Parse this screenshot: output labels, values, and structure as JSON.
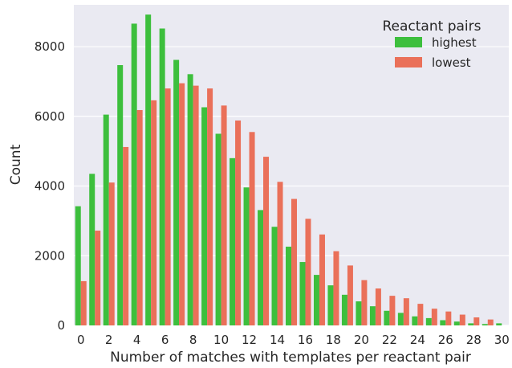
{
  "chart_data": {
    "type": "bar",
    "title": "",
    "xlabel": "Number of matches with templates per reactant pair",
    "ylabel": "Count",
    "ylim": [
      0,
      9200
    ],
    "yticks": [
      0,
      2000,
      4000,
      6000,
      8000
    ],
    "x": [
      0,
      1,
      2,
      3,
      4,
      5,
      6,
      7,
      8,
      9,
      10,
      11,
      12,
      13,
      14,
      15,
      16,
      17,
      18,
      19,
      20,
      21,
      22,
      23,
      24,
      25,
      26,
      27,
      28,
      29,
      30
    ],
    "xtick_labels": [
      "0",
      "2",
      "4",
      "6",
      "8",
      "10",
      "12",
      "14",
      "16",
      "18",
      "20",
      "22",
      "24",
      "26",
      "28",
      "30"
    ],
    "xtick_values": [
      0,
      2,
      4,
      6,
      8,
      10,
      12,
      14,
      16,
      18,
      20,
      22,
      24,
      26,
      28,
      30
    ],
    "grid": true,
    "background": "#eaeaf2",
    "legend": {
      "title": "Reactant pairs",
      "placement": "top-right"
    },
    "series": [
      {
        "name": "highest",
        "color": "#3dbf3d",
        "values": [
          3420,
          4350,
          6050,
          7470,
          8660,
          8920,
          8520,
          7620,
          7210,
          6260,
          5500,
          4800,
          3960,
          3310,
          2830,
          2260,
          1820,
          1450,
          1150,
          880,
          690,
          550,
          420,
          360,
          260,
          210,
          150,
          110,
          60,
          40,
          60
        ]
      },
      {
        "name": "lowest",
        "color": "#ea7059",
        "values": [
          1270,
          2720,
          4100,
          5120,
          6180,
          6460,
          6800,
          6950,
          6880,
          6800,
          6310,
          5880,
          5550,
          4840,
          4120,
          3630,
          3060,
          2610,
          2130,
          1720,
          1300,
          1060,
          850,
          780,
          620,
          480,
          400,
          310,
          230,
          170,
          null
        ]
      }
    ]
  }
}
